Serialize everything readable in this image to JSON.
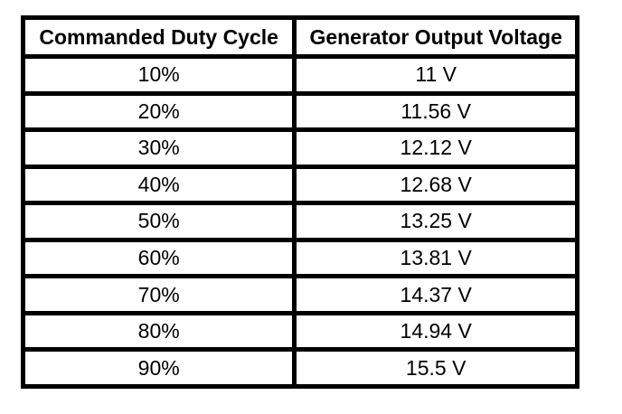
{
  "table": {
    "columns": [
      {
        "label": "Commanded Duty Cycle"
      },
      {
        "label": "Generator Output Voltage"
      }
    ],
    "rows": [
      {
        "duty_cycle": "10%",
        "voltage": "11 V"
      },
      {
        "duty_cycle": "20%",
        "voltage": "11.56 V"
      },
      {
        "duty_cycle": "30%",
        "voltage": "12.12 V"
      },
      {
        "duty_cycle": "40%",
        "voltage": "12.68 V"
      },
      {
        "duty_cycle": "50%",
        "voltage": "13.25 V"
      },
      {
        "duty_cycle": "60%",
        "voltage": "13.81 V"
      },
      {
        "duty_cycle": "70%",
        "voltage": "14.37 V"
      },
      {
        "duty_cycle": "80%",
        "voltage": "14.94 V"
      },
      {
        "duty_cycle": "90%",
        "voltage": "15.5 V"
      }
    ],
    "colors": {
      "border": "#000000",
      "text": "#000000",
      "background": "#ffffff"
    }
  },
  "chart_data": {
    "type": "table",
    "title": "",
    "columns": [
      "Commanded Duty Cycle",
      "Generator Output Voltage"
    ],
    "rows": [
      [
        "10%",
        "11 V"
      ],
      [
        "20%",
        "11.56 V"
      ],
      [
        "30%",
        "12.12 V"
      ],
      [
        "40%",
        "12.68 V"
      ],
      [
        "50%",
        "13.25 V"
      ],
      [
        "60%",
        "13.81 V"
      ],
      [
        "70%",
        "14.37 V"
      ],
      [
        "80%",
        "14.94 V"
      ],
      [
        "90%",
        "15.5 V"
      ]
    ],
    "duty_cycle_percent": [
      10,
      20,
      30,
      40,
      50,
      60,
      70,
      80,
      90
    ],
    "generator_output_voltage_v": [
      11,
      11.56,
      12.12,
      12.68,
      13.25,
      13.81,
      14.37,
      14.94,
      15.5
    ]
  }
}
